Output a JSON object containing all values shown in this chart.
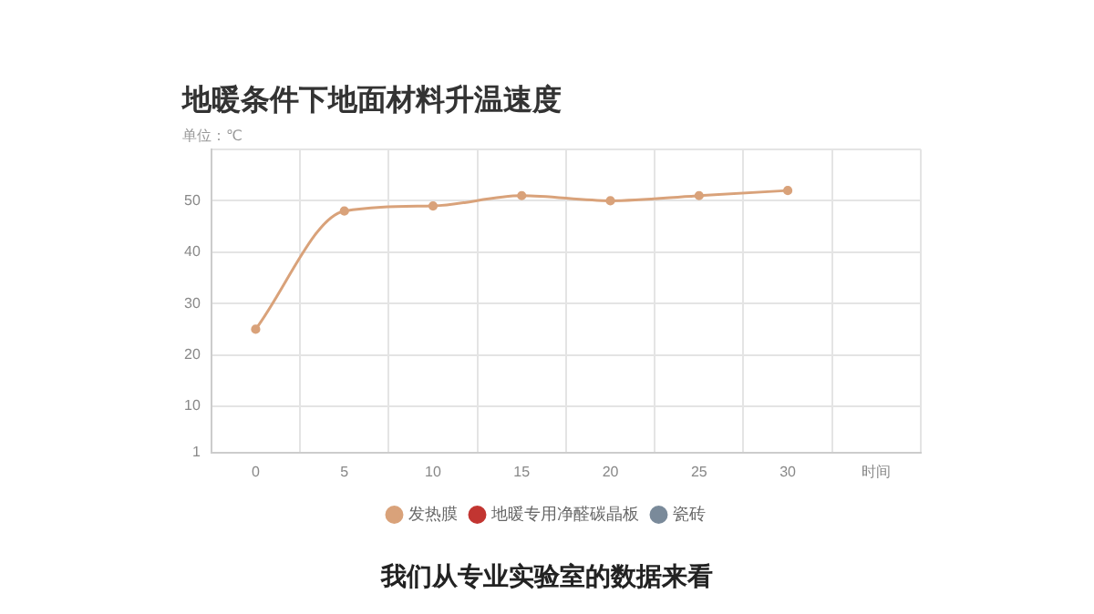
{
  "chart_data": {
    "type": "line",
    "title": "地暖条件下地面材料升温速度",
    "subtitle": "单位：℃",
    "categories": [
      "0",
      "5",
      "10",
      "15",
      "20",
      "25",
      "30",
      "时间"
    ],
    "series": [
      {
        "name": "发热膜",
        "color": "#d9a27a",
        "values": [
          25,
          48,
          49,
          51,
          50,
          51,
          52,
          null
        ]
      },
      {
        "name": "地暖专用净醛碳晶板",
        "color": "#c23531",
        "values": [
          null,
          null,
          null,
          null,
          null,
          null,
          null,
          null
        ]
      },
      {
        "name": "瓷砖",
        "color": "#7a8a9a",
        "values": [
          null,
          null,
          null,
          null,
          null,
          null,
          null,
          null
        ]
      }
    ],
    "ylim": [
      1,
      60
    ],
    "yticks": [
      1,
      10,
      20,
      30,
      40,
      50,
      {
        "value": 60,
        "label": null
      }
    ],
    "grid": true,
    "legend": "bottom",
    "marker": "circle",
    "line_style": "solid",
    "annotations": [
      "我们从专业实验室的数据来看"
    ]
  }
}
